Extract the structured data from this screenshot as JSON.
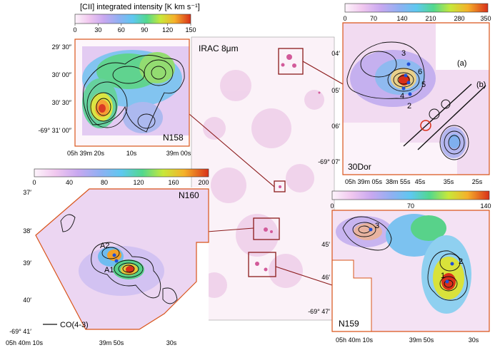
{
  "center": {
    "label": "IRAC 8μm"
  },
  "colorbar_main": {
    "title": "[CII] integrated intensity [K km s⁻¹]",
    "ticks": [
      "0",
      "30",
      "60",
      "90",
      "120",
      "150"
    ]
  },
  "colorbar_30dor": {
    "ticks": [
      "0",
      "70",
      "140",
      "210",
      "280",
      "350"
    ]
  },
  "colorbar_n160": {
    "ticks": [
      "0",
      "40",
      "80",
      "120",
      "160",
      "200"
    ]
  },
  "colorbar_n159": {
    "ticks": [
      "0",
      "70",
      "140"
    ]
  },
  "panels": {
    "n158": {
      "name": "N158",
      "dec_ticks": [
        "29′ 30″",
        "30′ 00″",
        "30′ 30″",
        "-69° 31′ 00″"
      ],
      "ra_ticks": [
        "05h 39m 20s",
        "10s",
        "39m 00s"
      ]
    },
    "dor30": {
      "name": "30Dor",
      "dec_ticks": [
        "04′",
        "05′",
        "06′",
        "-69° 07′"
      ],
      "ra_ticks": [
        "05h 39m 05s",
        "38m 55s",
        "45s",
        "35s",
        "25s"
      ],
      "markers": [
        "3",
        "6",
        "5",
        "4",
        "2"
      ],
      "cuts": [
        "(a)",
        "(b)"
      ]
    },
    "n160": {
      "name": "N160",
      "dec_ticks": [
        "37′",
        "38′",
        "39′",
        "40′",
        "-69° 41′"
      ],
      "ra_ticks": [
        "05h 40m 10s",
        "39m 50s",
        "30s"
      ],
      "markers": [
        "A2",
        "A1"
      ],
      "legend": "CO(4-3)"
    },
    "n159": {
      "name": "N159",
      "dec_ticks": [
        "45′",
        "46′",
        "-69° 47′"
      ],
      "ra_ticks": [
        "05h 40m 10s",
        "39m 50s",
        "30s"
      ],
      "markers": [
        "3",
        "2",
        "1"
      ]
    }
  }
}
